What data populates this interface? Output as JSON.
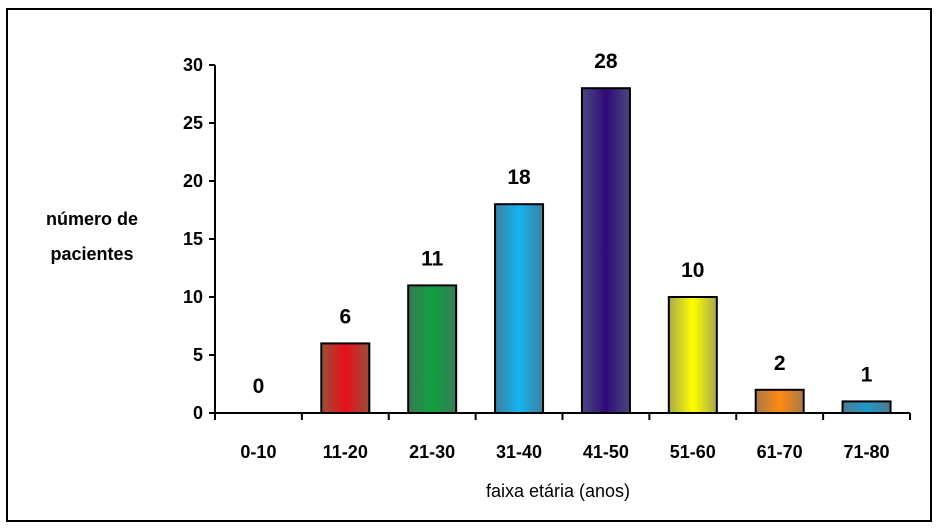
{
  "chart_data": {
    "type": "bar",
    "categories": [
      "0-10",
      "11-20",
      "21-30",
      "31-40",
      "41-50",
      "51-60",
      "61-70",
      "71-80"
    ],
    "values": [
      0,
      6,
      11,
      18,
      28,
      10,
      2,
      1
    ],
    "data_labels": [
      "0",
      "6",
      "11",
      "18",
      "28",
      "10",
      "2",
      "1"
    ],
    "ylabel_lines": [
      "número de",
      "pacientes"
    ],
    "xlabel": "faixa etária (anos)",
    "ylim": [
      0,
      30
    ],
    "yticks": [
      0,
      5,
      10,
      15,
      20,
      25,
      30
    ],
    "grid": false,
    "legend": "none",
    "bar_colors": [
      [
        "#888888",
        "#cccccc",
        "#888888"
      ],
      [
        "#9a4f3a",
        "#e8101a",
        "#9a4f3a"
      ],
      [
        "#3a7a55",
        "#0fa040",
        "#3a7a55"
      ],
      [
        "#3f7f9e",
        "#14b4f0",
        "#3f7f9e"
      ],
      [
        "#4a4880",
        "#300a78",
        "#4a4880"
      ],
      [
        "#a8a850",
        "#ffff00",
        "#a8a850"
      ],
      [
        "#a8784a",
        "#ff8a10",
        "#a8784a"
      ],
      [
        "#4d7b92",
        "#2098c8",
        "#4d7b92"
      ]
    ]
  }
}
